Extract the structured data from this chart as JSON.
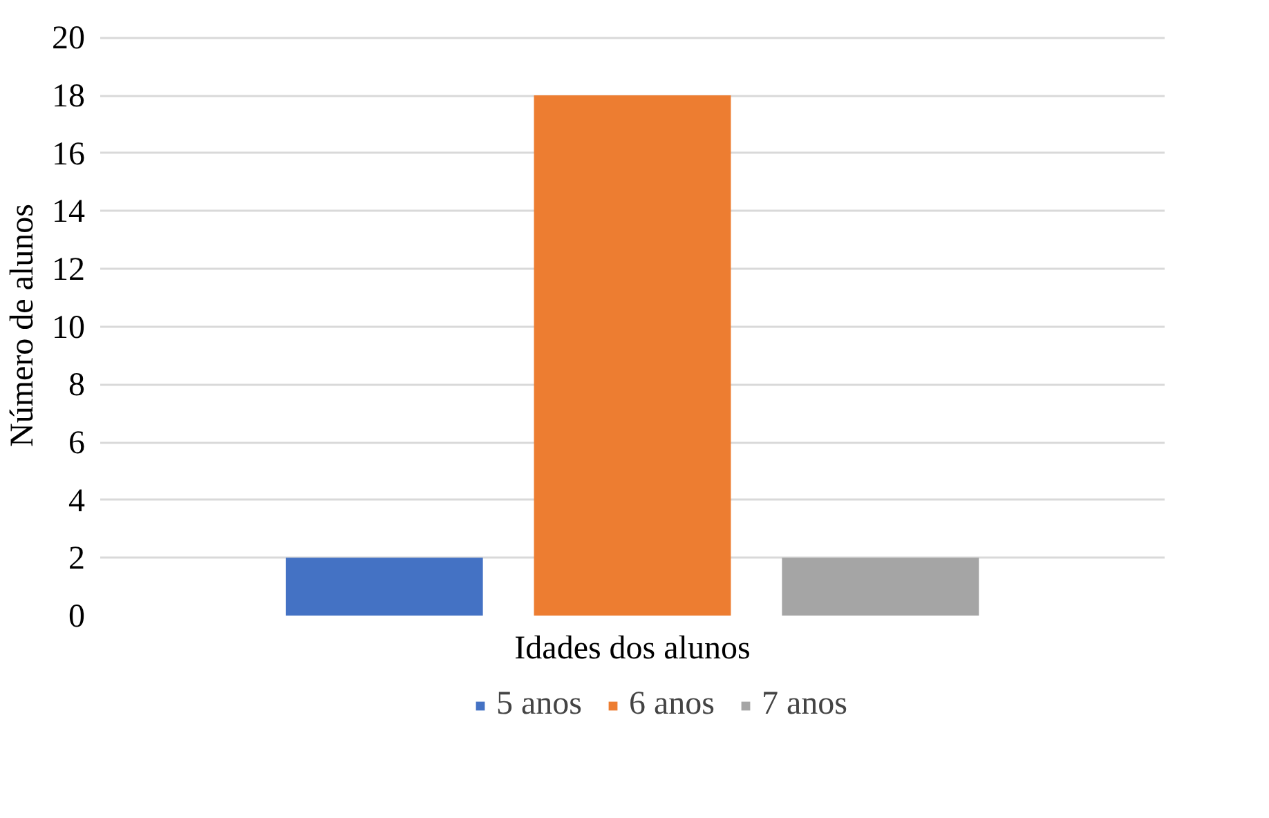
{
  "chart_data": {
    "type": "bar",
    "categories": [
      null
    ],
    "xlabel": "Idades dos alunos",
    "ylabel": "Número de alunos",
    "series": [
      {
        "name": "5 anos",
        "color": "#4472c4",
        "values": [
          2
        ]
      },
      {
        "name": "6 anos",
        "color": "#ed7d31",
        "values": [
          18
        ]
      },
      {
        "name": "7 anos",
        "color": "#a5a5a5",
        "values": [
          2
        ]
      }
    ],
    "ylim": [
      0,
      20
    ],
    "yticks": [
      0,
      2,
      4,
      6,
      8,
      10,
      12,
      14,
      16,
      18,
      20
    ],
    "grid": "y",
    "legend": "bottom"
  }
}
